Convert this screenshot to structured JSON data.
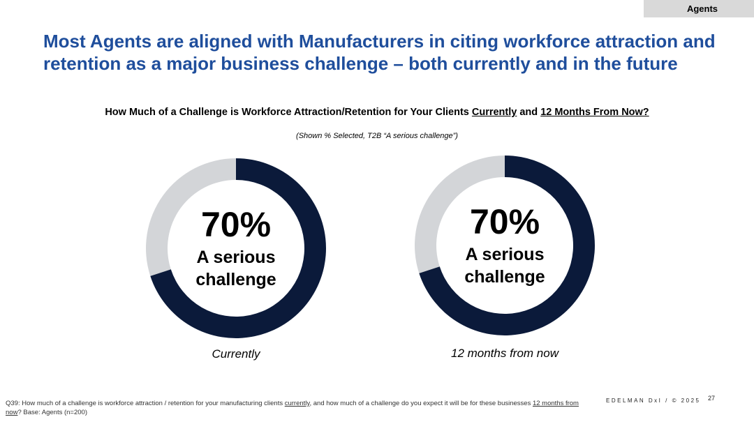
{
  "tag": "Agents",
  "headline": "Most Agents are aligned with Manufacturers in citing workforce attraction and retention as a major business challenge – both currently and in the future",
  "chart_title": {
    "part1": "How Much of a Challenge is Workforce Attraction/Retention for Your Clients ",
    "part2": "Currently",
    "part3": " and ",
    "part4": "12 Months From Now?"
  },
  "chart_subtitle": "(Shown % Selected, T2B “A serious challenge”)",
  "colors": {
    "filled": "#0b1a3a",
    "remainder": "#d3d5d8",
    "headline": "#1f4e9c"
  },
  "chart_data": [
    {
      "type": "pie",
      "value": 70,
      "unit": "%",
      "center_value": "70%",
      "center_label_line1": "A serious",
      "center_label_line2": "challenge",
      "caption": "Currently"
    },
    {
      "type": "pie",
      "value": 70,
      "unit": "%",
      "center_value": "70%",
      "center_label_line1": "A serious",
      "center_label_line2": "challenge",
      "caption": "12 months from now"
    }
  ],
  "footnote": {
    "part1": "Q39: How much of a challenge is workforce attraction / retention for your manufacturing clients ",
    "part2": "currently",
    "part3": ", and how much of a challenge do you expect it will be for these businesses ",
    "part4": "12 months from now",
    "part5": "? Base: Agents (n=200)"
  },
  "brand": "EDELMAN DxI / © 2025",
  "page_number": "27"
}
